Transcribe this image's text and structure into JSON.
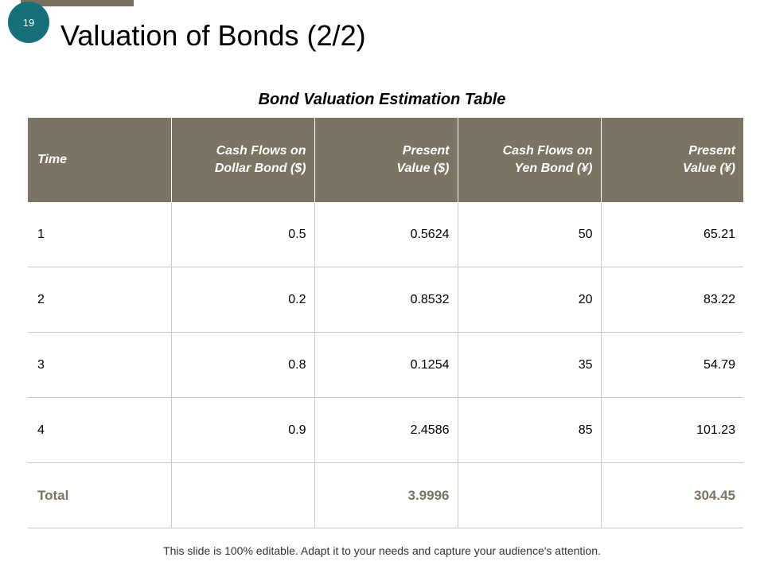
{
  "slide": {
    "number": "19",
    "title": "Valuation of Bonds (2/2)",
    "accent_color": "#15707a",
    "bar_color": "#7a7060"
  },
  "table": {
    "caption": "Bond Valuation Estimation Table",
    "headers": [
      "Time",
      "Cash Flows on\nDollar Bond ($)",
      "Present\nValue ($)",
      "Cash Flows on\nYen Bond (¥)",
      "Present\nValue (¥)"
    ],
    "rows": [
      [
        "1",
        "0.5",
        "0.5624",
        "50",
        "65.21"
      ],
      [
        "2",
        "0.2",
        "0.8532",
        "20",
        "83.22"
      ],
      [
        "3",
        "0.8",
        "0.1254",
        "35",
        "54.79"
      ],
      [
        "4",
        "0.9",
        "2.4586",
        "85",
        "101.23"
      ]
    ],
    "total": [
      "Total",
      "",
      "3.9996",
      "",
      "304.45"
    ],
    "header_color": "#7b7363"
  },
  "footer": {
    "note": "This slide is 100% editable. Adapt it to your needs and capture your audience's attention."
  }
}
